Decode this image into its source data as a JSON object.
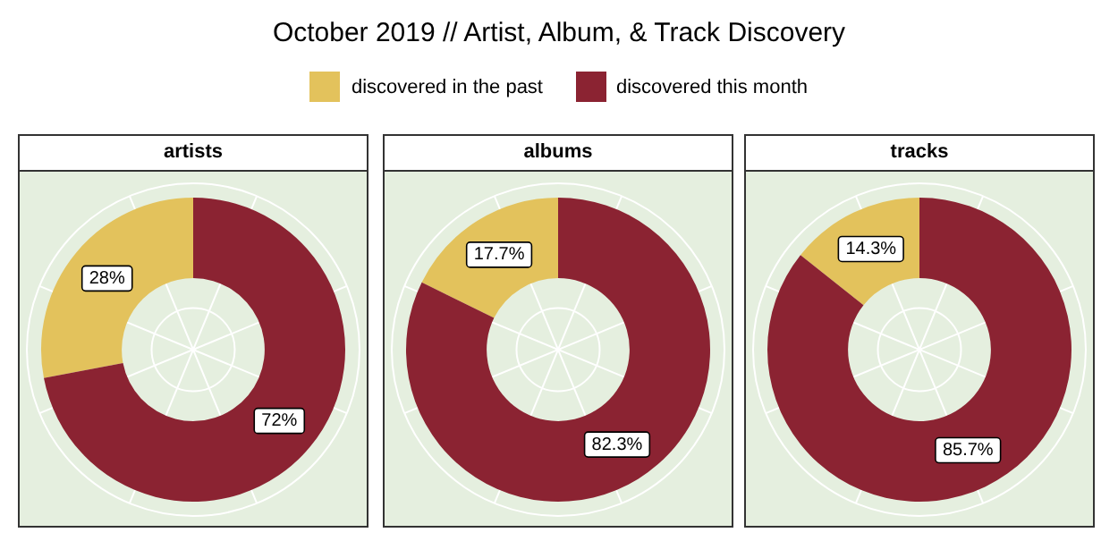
{
  "chart_data": [
    {
      "type": "donut",
      "title": "October 2019 // Artist, Album, & Track Discovery",
      "subtitle": "artists",
      "categories": [
        "discovered in the past",
        "discovered this month"
      ],
      "values": [
        28,
        72
      ],
      "value_labels": [
        "28%",
        "72%"
      ],
      "colors": [
        "#e3c25c",
        "#8b2332"
      ],
      "legend": "top",
      "grid": true
    },
    {
      "type": "donut",
      "subtitle": "albums",
      "values": [
        17.7,
        82.3
      ],
      "value_labels": [
        "17.7%",
        "82.3%"
      ],
      "colors": [
        "#e3c25c",
        "#8b2332"
      ],
      "grid": true
    },
    {
      "type": "donut",
      "subtitle": "tracks",
      "values": [
        14.3,
        85.7
      ],
      "value_labels": [
        "14.3%",
        "85.7%"
      ],
      "colors": [
        "#e3c25c",
        "#8b2332"
      ],
      "grid": true
    }
  ]
}
